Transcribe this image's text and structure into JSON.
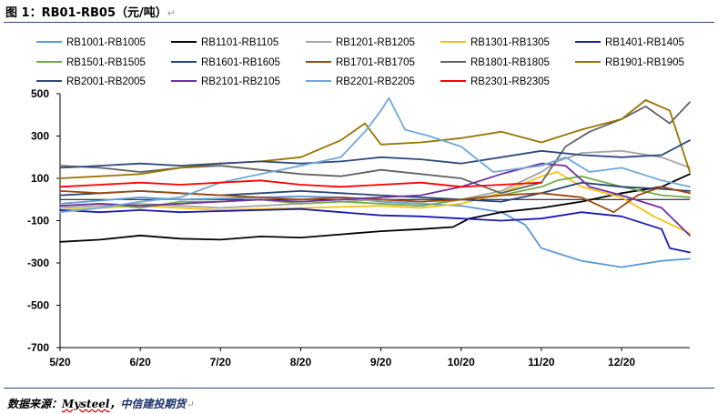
{
  "figure": {
    "title": "图 1：RB01-RB05（元/吨）",
    "return_mark": "↵",
    "source_label": "数据来源：",
    "source_vendor": "Mysteel",
    "source_sep": "，",
    "source_company": "中信建投期货"
  },
  "chart_data": {
    "type": "line",
    "title": "",
    "xlabel": "",
    "ylabel": "",
    "x_ticks": [
      "5/20",
      "6/20",
      "7/20",
      "8/20",
      "9/20",
      "10/20",
      "11/20",
      "12/20"
    ],
    "x_range": [
      0,
      7.85
    ],
    "y_ticks": [
      500,
      300,
      100,
      -100,
      -300,
      -500,
      -700
    ],
    "ylim": [
      -700,
      500
    ],
    "grid": false,
    "legend_position": "top",
    "series": [
      {
        "name": "RB1001-RB1005",
        "color": "#5b9bd5",
        "points": [
          [
            0,
            -20
          ],
          [
            0.5,
            -5
          ],
          [
            1,
            10
          ],
          [
            1.5,
            0
          ],
          [
            2,
            5
          ],
          [
            2.5,
            10
          ],
          [
            3,
            15
          ],
          [
            3.5,
            10
          ],
          [
            4,
            -10
          ],
          [
            4.5,
            -20
          ],
          [
            5,
            -30
          ],
          [
            5.5,
            -60
          ],
          [
            5.8,
            -120
          ],
          [
            6,
            -230
          ],
          [
            6.5,
            -290
          ],
          [
            7,
            -320
          ],
          [
            7.5,
            -290
          ],
          [
            7.85,
            -280
          ]
        ]
      },
      {
        "name": "RB1101-RB1105",
        "color": "#000000",
        "points": [
          [
            0,
            -200
          ],
          [
            0.5,
            -190
          ],
          [
            1,
            -170
          ],
          [
            1.5,
            -185
          ],
          [
            2,
            -190
          ],
          [
            2.5,
            -175
          ],
          [
            3,
            -180
          ],
          [
            3.5,
            -165
          ],
          [
            4,
            -150
          ],
          [
            4.5,
            -140
          ],
          [
            4.9,
            -130
          ],
          [
            5.1,
            -90
          ],
          [
            5.5,
            -60
          ],
          [
            6,
            -40
          ],
          [
            6.5,
            -10
          ],
          [
            7,
            30
          ],
          [
            7.5,
            60
          ],
          [
            7.85,
            120
          ]
        ]
      },
      {
        "name": "RB1201-RB1205",
        "color": "#a5a5a5",
        "points": [
          [
            0,
            -40
          ],
          [
            0.5,
            -30
          ],
          [
            1,
            -20
          ],
          [
            1.5,
            -30
          ],
          [
            2,
            -40
          ],
          [
            2.5,
            -30
          ],
          [
            3,
            -20
          ],
          [
            3.5,
            -10
          ],
          [
            4,
            0
          ],
          [
            4.5,
            -10
          ],
          [
            5,
            0
          ],
          [
            5.5,
            40
          ],
          [
            6,
            130
          ],
          [
            6.2,
            180
          ],
          [
            6.5,
            220
          ],
          [
            7,
            230
          ],
          [
            7.5,
            200
          ],
          [
            7.85,
            150
          ]
        ]
      },
      {
        "name": "RB1301-RB1305",
        "color": "#f2c314",
        "points": [
          [
            0,
            -50
          ],
          [
            0.5,
            -40
          ],
          [
            1,
            -30
          ],
          [
            1.5,
            -40
          ],
          [
            2,
            -50
          ],
          [
            2.5,
            -45
          ],
          [
            3,
            -40
          ],
          [
            3.5,
            -35
          ],
          [
            4,
            -30
          ],
          [
            4.5,
            -40
          ],
          [
            5,
            -20
          ],
          [
            5.5,
            30
          ],
          [
            6,
            110
          ],
          [
            6.2,
            130
          ],
          [
            6.5,
            60
          ],
          [
            7,
            10
          ],
          [
            7.4,
            -80
          ],
          [
            7.85,
            -160
          ]
        ]
      },
      {
        "name": "RB1401-RB1405",
        "color": "#1a1ab0",
        "points": [
          [
            0,
            -50
          ],
          [
            0.5,
            -60
          ],
          [
            1,
            -50
          ],
          [
            1.5,
            -60
          ],
          [
            2,
            -55
          ],
          [
            2.5,
            -50
          ],
          [
            3,
            -45
          ],
          [
            3.5,
            -60
          ],
          [
            4,
            -75
          ],
          [
            4.5,
            -80
          ],
          [
            5,
            -90
          ],
          [
            5.5,
            -100
          ],
          [
            6,
            -90
          ],
          [
            6.5,
            -60
          ],
          [
            7,
            -80
          ],
          [
            7.5,
            -140
          ],
          [
            7.6,
            -230
          ],
          [
            7.85,
            -250
          ]
        ]
      },
      {
        "name": "RB1501-RB1505",
        "color": "#70ad47",
        "points": [
          [
            0,
            -30
          ],
          [
            0.5,
            -20
          ],
          [
            1,
            -40
          ],
          [
            1.5,
            -10
          ],
          [
            2,
            -10
          ],
          [
            2.5,
            0
          ],
          [
            3,
            -20
          ],
          [
            3.5,
            -10
          ],
          [
            4,
            -20
          ],
          [
            4.5,
            -30
          ],
          [
            5,
            0
          ],
          [
            5.5,
            20
          ],
          [
            6,
            60
          ],
          [
            6.2,
            90
          ],
          [
            6.5,
            110
          ],
          [
            7,
            60
          ],
          [
            7.5,
            20
          ],
          [
            7.85,
            10
          ]
        ]
      },
      {
        "name": "RB1601-RB1605",
        "color": "#264478",
        "points": [
          [
            0,
            20
          ],
          [
            0.5,
            30
          ],
          [
            1,
            40
          ],
          [
            1.5,
            30
          ],
          [
            2,
            20
          ],
          [
            2.5,
            30
          ],
          [
            3,
            40
          ],
          [
            3.5,
            30
          ],
          [
            4,
            20
          ],
          [
            4.5,
            10
          ],
          [
            5,
            0
          ],
          [
            5.5,
            -10
          ],
          [
            6,
            30
          ],
          [
            6.5,
            80
          ],
          [
            7,
            60
          ],
          [
            7.5,
            50
          ],
          [
            7.85,
            40
          ]
        ]
      },
      {
        "name": "RB1701-RB1705",
        "color": "#9e480e",
        "points": [
          [
            0,
            40
          ],
          [
            0.5,
            30
          ],
          [
            1,
            40
          ],
          [
            1.5,
            30
          ],
          [
            2,
            20
          ],
          [
            2.5,
            10
          ],
          [
            3,
            0
          ],
          [
            3.5,
            10
          ],
          [
            4,
            0
          ],
          [
            4.5,
            -10
          ],
          [
            5,
            0
          ],
          [
            5.5,
            20
          ],
          [
            6,
            30
          ],
          [
            6.5,
            10
          ],
          [
            6.9,
            -60
          ],
          [
            7.2,
            20
          ],
          [
            7.5,
            60
          ],
          [
            7.85,
            30
          ]
        ]
      },
      {
        "name": "RB1801-RB1805",
        "color": "#636363",
        "points": [
          [
            0,
            160
          ],
          [
            0.5,
            150
          ],
          [
            1,
            130
          ],
          [
            1.5,
            150
          ],
          [
            2,
            160
          ],
          [
            2.5,
            140
          ],
          [
            3,
            120
          ],
          [
            3.5,
            110
          ],
          [
            4,
            140
          ],
          [
            4.5,
            120
          ],
          [
            5,
            100
          ],
          [
            5.5,
            30
          ],
          [
            6,
            80
          ],
          [
            6.3,
            250
          ],
          [
            6.6,
            320
          ],
          [
            7,
            380
          ],
          [
            7.3,
            440
          ],
          [
            7.6,
            360
          ],
          [
            7.85,
            460
          ]
        ]
      },
      {
        "name": "RB1901-RB1905",
        "color": "#997300",
        "points": [
          [
            0,
            100
          ],
          [
            0.5,
            110
          ],
          [
            1,
            120
          ],
          [
            1.5,
            150
          ],
          [
            2,
            170
          ],
          [
            2.5,
            180
          ],
          [
            3,
            200
          ],
          [
            3.5,
            280
          ],
          [
            3.8,
            360
          ],
          [
            4,
            260
          ],
          [
            4.5,
            270
          ],
          [
            5,
            290
          ],
          [
            5.5,
            320
          ],
          [
            6,
            270
          ],
          [
            6.5,
            330
          ],
          [
            7,
            380
          ],
          [
            7.3,
            470
          ],
          [
            7.6,
            420
          ],
          [
            7.85,
            130
          ]
        ]
      },
      {
        "name": "RB2001-RB2005",
        "color": "#2e4a7d",
        "points": [
          [
            0,
            150
          ],
          [
            0.5,
            160
          ],
          [
            1,
            170
          ],
          [
            1.5,
            160
          ],
          [
            2,
            170
          ],
          [
            2.5,
            180
          ],
          [
            3,
            170
          ],
          [
            3.5,
            180
          ],
          [
            4,
            200
          ],
          [
            4.5,
            190
          ],
          [
            5,
            170
          ],
          [
            5.5,
            200
          ],
          [
            6,
            230
          ],
          [
            6.5,
            210
          ],
          [
            7,
            200
          ],
          [
            7.5,
            210
          ],
          [
            7.85,
            280
          ]
        ]
      },
      {
        "name": "RB2101-RB2105",
        "color": "#7030a0",
        "points": [
          [
            0,
            -30
          ],
          [
            0.5,
            -20
          ],
          [
            1,
            -30
          ],
          [
            1.5,
            -20
          ],
          [
            2,
            -10
          ],
          [
            2.5,
            0
          ],
          [
            3,
            -10
          ],
          [
            3.5,
            0
          ],
          [
            4,
            10
          ],
          [
            4.5,
            20
          ],
          [
            5,
            60
          ],
          [
            5.5,
            120
          ],
          [
            6,
            170
          ],
          [
            6.3,
            160
          ],
          [
            6.6,
            60
          ],
          [
            7,
            20
          ],
          [
            7.5,
            -40
          ],
          [
            7.85,
            -170
          ]
        ]
      },
      {
        "name": "RB2201-RB2205",
        "color": "#6fa8dc",
        "points": [
          [
            0,
            -60
          ],
          [
            0.5,
            -40
          ],
          [
            1,
            -10
          ],
          [
            1.5,
            10
          ],
          [
            2,
            80
          ],
          [
            2.5,
            120
          ],
          [
            3,
            160
          ],
          [
            3.5,
            200
          ],
          [
            3.8,
            320
          ],
          [
            4,
            420
          ],
          [
            4.1,
            480
          ],
          [
            4.3,
            330
          ],
          [
            4.6,
            300
          ],
          [
            5,
            250
          ],
          [
            5.4,
            130
          ],
          [
            5.8,
            150
          ],
          [
            6,
            160
          ],
          [
            6.3,
            200
          ],
          [
            6.6,
            130
          ],
          [
            7,
            150
          ],
          [
            7.5,
            90
          ],
          [
            7.85,
            60
          ]
        ]
      },
      {
        "name": "RB2301-RB2305",
        "color": "#ff0000",
        "points": [
          [
            0,
            60
          ],
          [
            0.5,
            70
          ],
          [
            1,
            80
          ],
          [
            1.5,
            70
          ],
          [
            2,
            80
          ],
          [
            2.5,
            90
          ],
          [
            3,
            70
          ],
          [
            3.5,
            60
          ],
          [
            4,
            70
          ],
          [
            4.5,
            80
          ],
          [
            5,
            60
          ],
          [
            5.5,
            70
          ],
          [
            6,
            80
          ]
        ]
      }
    ]
  }
}
